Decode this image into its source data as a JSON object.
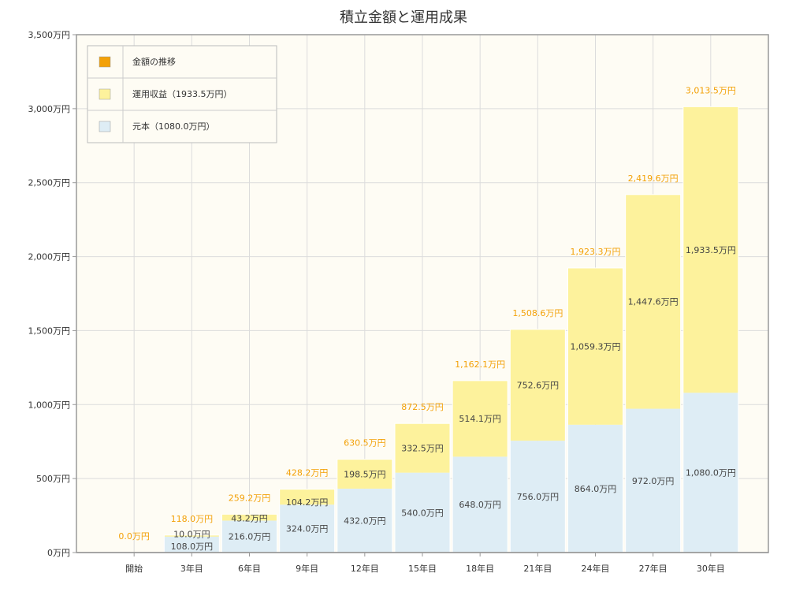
{
  "colors": {
    "background": "#fefcf4",
    "grid": "#dcdcdc",
    "axis": "#999999",
    "principal": "#deedf5",
    "gain": "#fdf29c",
    "total": "#f3a108"
  },
  "chart_data": {
    "type": "bar",
    "stacked": true,
    "title": "積立金額と運用成果",
    "categories": [
      "開始",
      "3年目",
      "6年目",
      "9年目",
      "12年目",
      "15年目",
      "18年目",
      "21年目",
      "24年目",
      "27年目",
      "30年目"
    ],
    "ylim": [
      0,
      3500
    ],
    "yticks": [
      0,
      500,
      1000,
      1500,
      2000,
      2500,
      3000,
      3500
    ],
    "ytick_labels": [
      "0万円",
      "500万円",
      "1,000万円",
      "1,500万円",
      "2,000万円",
      "2,500万円",
      "3,000万円",
      "3,500万円"
    ],
    "grid": true,
    "legend_position": "top-left",
    "series": [
      {
        "name": "元本（1080.0万円）",
        "color": "#deedf5",
        "values": [
          0,
          108.0,
          216.0,
          324.0,
          432.0,
          540.0,
          648.0,
          756.0,
          864.0,
          972.0,
          1080.0
        ],
        "labels": [
          "",
          "108.0万円",
          "216.0万円",
          "324.0万円",
          "432.0万円",
          "540.0万円",
          "648.0万円",
          "756.0万円",
          "864.0万円",
          "972.0万円",
          "1,080.0万円"
        ]
      },
      {
        "name": "運用収益（1933.5万円）",
        "color": "#fdf29c",
        "values": [
          0,
          10.0,
          43.2,
          104.2,
          198.5,
          332.5,
          514.1,
          752.6,
          1059.3,
          1447.6,
          1933.5
        ],
        "labels": [
          "",
          "10.0万円",
          "43.2万円",
          "104.2万円",
          "198.5万円",
          "332.5万円",
          "514.1万円",
          "752.6万円",
          "1,059.3万円",
          "1,447.6万円",
          "1,933.5万円"
        ]
      }
    ],
    "totals": {
      "name": "金額の推移",
      "color": "#f3a108",
      "values": [
        0.0,
        118.0,
        259.2,
        428.2,
        630.5,
        872.5,
        1162.1,
        1508.6,
        1923.3,
        2419.6,
        3013.5
      ],
      "labels": [
        "0.0万円",
        "118.0万円",
        "259.2万円",
        "428.2万円",
        "630.5万円",
        "872.5万円",
        "1,162.1万円",
        "1,508.6万円",
        "1,923.3万円",
        "2,419.6万円",
        "3,013.5万円"
      ]
    }
  }
}
